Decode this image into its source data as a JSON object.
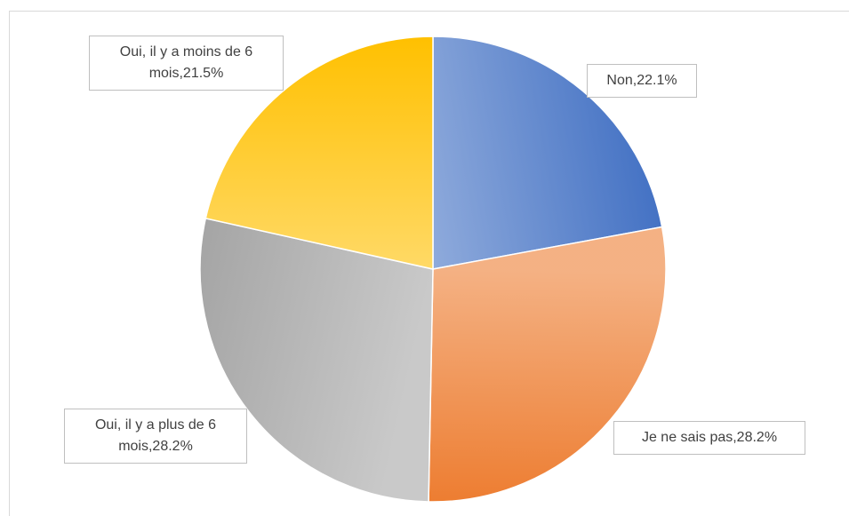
{
  "chart_data": {
    "type": "pie",
    "categories": [
      "Non",
      "Je ne sais pas",
      "Oui, il y a plus de 6 mois",
      "Oui, il y a moins de 6 mois"
    ],
    "values": [
      22.1,
      28.2,
      28.2,
      21.5
    ],
    "value_labels": [
      "Non,22.1%",
      "Je ne sais pas,28.2%",
      "Oui, il y a plus de 6 mois,28.2%",
      "Oui, il y a moins de 6 mois,21.5%"
    ],
    "colors": [
      "#4472c4",
      "#ed7d31",
      "#a5a5a5",
      "#ffc000"
    ]
  }
}
